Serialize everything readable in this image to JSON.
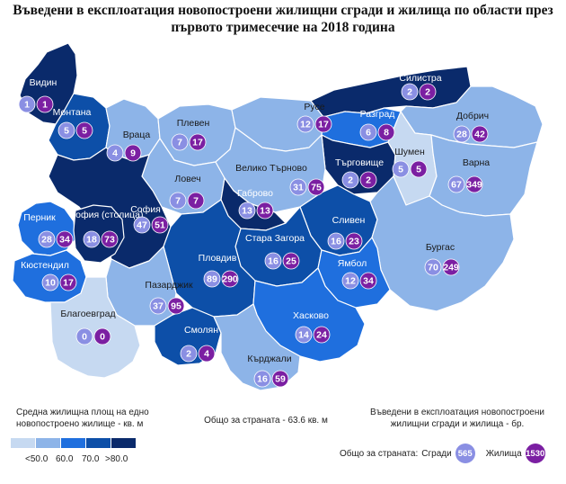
{
  "title": "Въведени в експлоатация новопостроени жилищни сгради и жилища по области през първото тримесечие на 2018 година",
  "colors": {
    "bin1": "#c6d9f1",
    "bin2": "#8db4e8",
    "bin3": "#1f6fde",
    "bin4": "#0d4fa8",
    "bin5": "#0a2a6b",
    "buildings_bubble": "#8a8fe3",
    "dwellings_bubble": "#7b1fa2"
  },
  "legend": {
    "area_title": "Средна жилищна площ на едно новопостроено жилище - кв. м",
    "scale_labels": [
      "<50.0",
      "60.0",
      "70.0",
      ">80.0"
    ],
    "country_average": "Общо за страната - 63.6 кв. м",
    "bubbles_title": "Въведени в експлоатация новопостроени жилищни сгради и жилища - бр.",
    "totals_label": "Общо за страната:",
    "buildings_label": "Сгради",
    "buildings_total": "565",
    "dwellings_label": "Жилища",
    "dwellings_total": "1530"
  },
  "regions": [
    {
      "name": "Видин",
      "buildings": "1",
      "dwellings": "1",
      "fill_bin": 5
    },
    {
      "name": "Монтана",
      "buildings": "5",
      "dwellings": "5",
      "fill_bin": 4
    },
    {
      "name": "Враца",
      "buildings": "4",
      "dwellings": "9",
      "fill_bin": 2
    },
    {
      "name": "Плевен",
      "buildings": "7",
      "dwellings": "17",
      "fill_bin": 2
    },
    {
      "name": "Русе",
      "buildings": "12",
      "dwellings": "17",
      "fill_bin": 2
    },
    {
      "name": "Силистра",
      "buildings": "2",
      "dwellings": "2",
      "fill_bin": 5
    },
    {
      "name": "Разград",
      "buildings": "6",
      "dwellings": "8",
      "fill_bin": 3
    },
    {
      "name": "Добрич",
      "buildings": "28",
      "dwellings": "42",
      "fill_bin": 2
    },
    {
      "name": "Търговище",
      "buildings": "2",
      "dwellings": "2",
      "fill_bin": 5
    },
    {
      "name": "Шумен",
      "buildings": "5",
      "dwellings": "5",
      "fill_bin": 1
    },
    {
      "name": "Варна",
      "buildings": "67",
      "dwellings": "349",
      "fill_bin": 2
    },
    {
      "name": "Ловеч",
      "buildings": "7",
      "dwellings": "7",
      "fill_bin": 2
    },
    {
      "name": "Велико Търново",
      "buildings": "31",
      "dwellings": "75",
      "fill_bin": 2
    },
    {
      "name": "Габрово",
      "buildings": "13",
      "dwellings": "13",
      "fill_bin": 5
    },
    {
      "name": "София",
      "buildings": "47",
      "dwellings": "51",
      "fill_bin": 5
    },
    {
      "name": "Перник",
      "buildings": "28",
      "dwellings": "34",
      "fill_bin": 3
    },
    {
      "name": "София (столица)",
      "buildings": "18",
      "dwellings": "73",
      "fill_bin": 5
    },
    {
      "name": "Кюстендил",
      "buildings": "10",
      "dwellings": "17",
      "fill_bin": 3
    },
    {
      "name": "Сливен",
      "buildings": "16",
      "dwellings": "23",
      "fill_bin": 4
    },
    {
      "name": "Стара Загора",
      "buildings": "16",
      "dwellings": "25",
      "fill_bin": 4
    },
    {
      "name": "Бургас",
      "buildings": "70",
      "dwellings": "249",
      "fill_bin": 2
    },
    {
      "name": "Ямбол",
      "buildings": "12",
      "dwellings": "34",
      "fill_bin": 3
    },
    {
      "name": "Пловдив",
      "buildings": "89",
      "dwellings": "290",
      "fill_bin": 4
    },
    {
      "name": "Пазарджик",
      "buildings": "37",
      "dwellings": "95",
      "fill_bin": 2
    },
    {
      "name": "Благоевград",
      "buildings": "0",
      "dwellings": "0",
      "fill_bin": 1
    },
    {
      "name": "Хасково",
      "buildings": "14",
      "dwellings": "24",
      "fill_bin": 3
    },
    {
      "name": "Смолян",
      "buildings": "2",
      "dwellings": "4",
      "fill_bin": 4
    },
    {
      "name": "Кърджали",
      "buildings": "16",
      "dwellings": "59",
      "fill_bin": 2
    }
  ]
}
